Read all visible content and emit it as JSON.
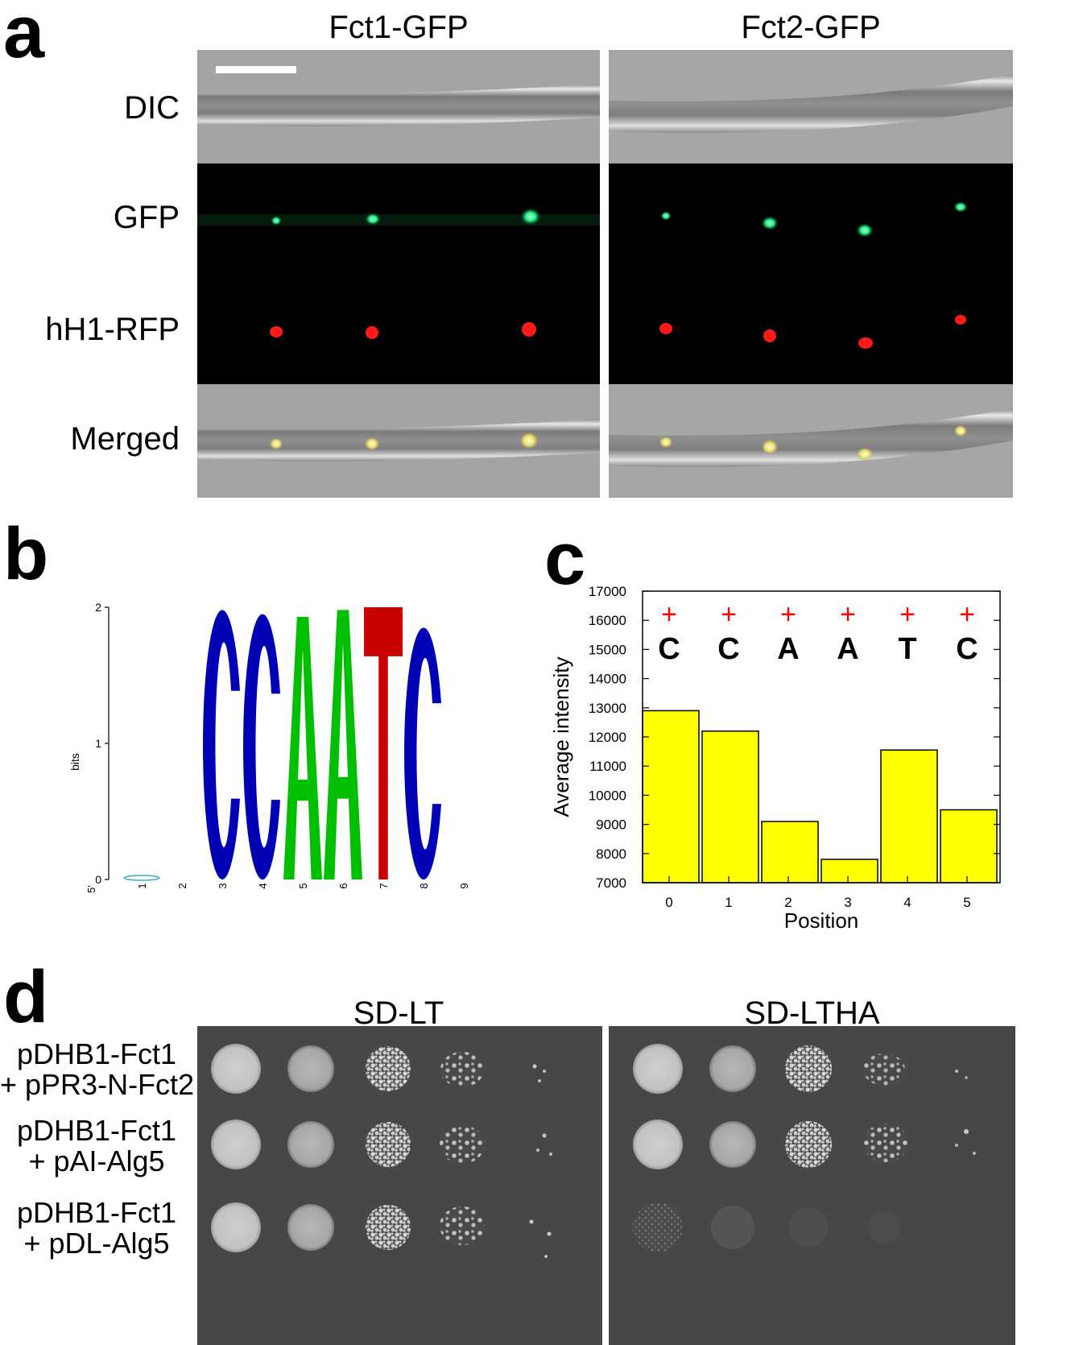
{
  "panels": {
    "a": {
      "label": "a",
      "columns": [
        "Fct1-GFP",
        "Fct2-GFP"
      ],
      "rows": [
        "DIC",
        "GFP",
        "hH1-RFP",
        "Merged"
      ]
    },
    "b": {
      "label": "b",
      "ylabel": "bits",
      "yticks": [
        "0",
        "1",
        "2"
      ],
      "xticks": [
        "1",
        "2",
        "3",
        "4",
        "5",
        "6",
        "7",
        "8",
        "9"
      ],
      "five_prime": "5′",
      "logo": [
        {
          "pos": 1,
          "letter": "",
          "height": 0.02
        },
        {
          "pos": 2,
          "letter": "",
          "height": 0
        },
        {
          "pos": 3,
          "letter": "C",
          "height": 1.98
        },
        {
          "pos": 4,
          "letter": "C",
          "height": 1.95
        },
        {
          "pos": 5,
          "letter": "A",
          "height": 1.93
        },
        {
          "pos": 6,
          "letter": "A",
          "height": 1.98
        },
        {
          "pos": 7,
          "letter": "T",
          "height": 2.0
        },
        {
          "pos": 8,
          "letter": "C",
          "height": 1.85
        },
        {
          "pos": 9,
          "letter": "",
          "height": 0
        }
      ],
      "colors": {
        "C": "#0000b4",
        "A": "#00bf00",
        "T": "#c80000"
      }
    },
    "d": {
      "label": "d",
      "columns": [
        "SD-LT",
        "SD-LTHA"
      ],
      "rows": [
        [
          "pDHB1-Fct1",
          "+ pPR3-N-Fct2"
        ],
        [
          "pDHB1-Fct1",
          "+ pAI-Alg5"
        ],
        [
          "pDHB1-Fct1",
          "+ pDL-Alg5"
        ]
      ]
    }
  },
  "chart_data": {
    "type": "bar",
    "label": "c",
    "categories": [
      "0",
      "1",
      "2",
      "3",
      "4",
      "5"
    ],
    "values": [
      12900,
      12200,
      9100,
      7800,
      11550,
      9500
    ],
    "letters": [
      "C",
      "C",
      "A",
      "A",
      "T",
      "C"
    ],
    "marker": "+",
    "title": "",
    "xlabel": "Position",
    "ylabel": "Average intensity",
    "ylim": [
      7000,
      17000
    ],
    "yticks": [
      "7000",
      "8000",
      "9000",
      "10000",
      "11000",
      "12000",
      "13000",
      "14000",
      "15000",
      "16000",
      "17000"
    ],
    "bar_color": "#ffff00",
    "marker_color": "#ff0000"
  }
}
